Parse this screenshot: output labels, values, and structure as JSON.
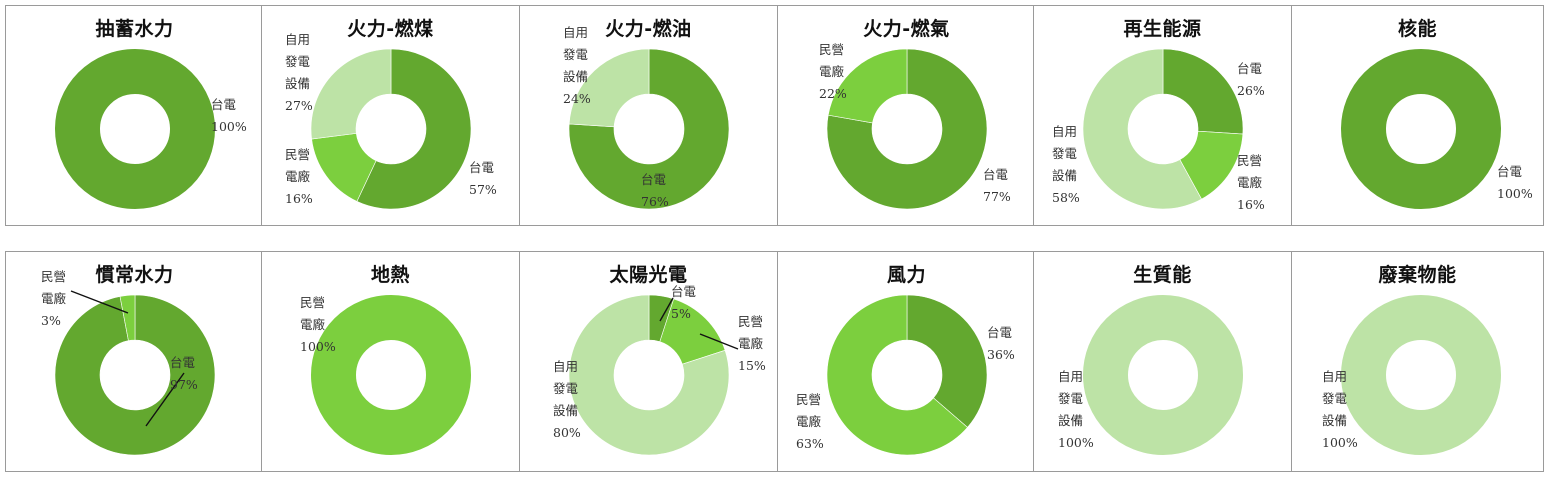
{
  "colors": {
    "taipower": "#63a82f",
    "private": "#7ccf3e",
    "self_use": "#bde3a6",
    "leader": "#111111"
  },
  "chart_data": [
    {
      "type": "pie",
      "title": "抽蓄水力",
      "categories": [
        "台電"
      ],
      "values": [
        100
      ],
      "slices": [
        {
          "label_lines": [
            "台電",
            "100%"
          ],
          "color_key": "taipower"
        }
      ]
    },
    {
      "type": "pie",
      "title": "火力-燃煤",
      "categories": [
        "台電",
        "民營電廠",
        "自用發電設備"
      ],
      "values": [
        57,
        16,
        27
      ],
      "slices": [
        {
          "label_lines": [
            "台電",
            "57%"
          ],
          "color_key": "taipower"
        },
        {
          "label_lines": [
            "民營",
            "電廠",
            "16%"
          ],
          "color_key": "private"
        },
        {
          "label_lines": [
            "自用",
            "發電",
            "設備",
            "27%"
          ],
          "color_key": "self_use"
        }
      ]
    },
    {
      "type": "pie",
      "title": "火力-燃油",
      "categories": [
        "台電",
        "自用發電設備"
      ],
      "values": [
        76,
        24
      ],
      "slices": [
        {
          "label_lines": [
            "台電",
            "76%"
          ],
          "color_key": "taipower"
        },
        {
          "label_lines": [
            "自用",
            "發電",
            "設備",
            "24%"
          ],
          "color_key": "self_use"
        }
      ]
    },
    {
      "type": "pie",
      "title": "火力-燃氣",
      "categories": [
        "台電",
        "民營電廠"
      ],
      "values": [
        77,
        22
      ],
      "slices": [
        {
          "label_lines": [
            "台電",
            "77%"
          ],
          "color_key": "taipower"
        },
        {
          "label_lines": [
            "民營",
            "電廠",
            "22%"
          ],
          "color_key": "private"
        }
      ]
    },
    {
      "type": "pie",
      "title": "再生能源",
      "categories": [
        "台電",
        "民營電廠",
        "自用發電設備"
      ],
      "values": [
        26,
        16,
        58
      ],
      "slices": [
        {
          "label_lines": [
            "台電",
            "26%"
          ],
          "color_key": "taipower"
        },
        {
          "label_lines": [
            "民營",
            "電廠",
            "16%"
          ],
          "color_key": "private"
        },
        {
          "label_lines": [
            "自用",
            "發電",
            "設備",
            "58%"
          ],
          "color_key": "self_use"
        }
      ]
    },
    {
      "type": "pie",
      "title": "核能",
      "categories": [
        "台電"
      ],
      "values": [
        100
      ],
      "slices": [
        {
          "label_lines": [
            "台電",
            "100%"
          ],
          "color_key": "taipower"
        }
      ]
    },
    {
      "type": "pie",
      "title": "慣常水力",
      "categories": [
        "台電",
        "民營電廠"
      ],
      "values": [
        97,
        3
      ],
      "slices": [
        {
          "label_lines": [
            "台電",
            "97%"
          ],
          "color_key": "taipower"
        },
        {
          "label_lines": [
            "民營",
            "電廠",
            "3%"
          ],
          "color_key": "private"
        }
      ]
    },
    {
      "type": "pie",
      "title": "地熱",
      "categories": [
        "民營電廠"
      ],
      "values": [
        100
      ],
      "slices": [
        {
          "label_lines": [
            "民營",
            "電廠",
            "100%"
          ],
          "color_key": "private"
        }
      ]
    },
    {
      "type": "pie",
      "title": "太陽光電",
      "categories": [
        "台電",
        "民營電廠",
        "自用發電設備"
      ],
      "values": [
        5,
        15,
        80
      ],
      "slices": [
        {
          "label_lines": [
            "台電",
            "5%"
          ],
          "color_key": "taipower"
        },
        {
          "label_lines": [
            "民營",
            "電廠",
            "15%"
          ],
          "color_key": "private"
        },
        {
          "label_lines": [
            "自用",
            "發電",
            "設備",
            "80%"
          ],
          "color_key": "self_use"
        }
      ]
    },
    {
      "type": "pie",
      "title": "風力",
      "categories": [
        "台電",
        "民營電廠"
      ],
      "values": [
        36,
        63
      ],
      "slices": [
        {
          "label_lines": [
            "台電",
            "36%"
          ],
          "color_key": "taipower"
        },
        {
          "label_lines": [
            "民營",
            "電廠",
            "63%"
          ],
          "color_key": "private"
        }
      ]
    },
    {
      "type": "pie",
      "title": "生質能",
      "categories": [
        "自用發電設備"
      ],
      "values": [
        100
      ],
      "slices": [
        {
          "label_lines": [
            "自用",
            "發電",
            "設備",
            "100%"
          ],
          "color_key": "self_use"
        }
      ]
    },
    {
      "type": "pie",
      "title": "廢棄物能",
      "categories": [
        "自用發電設備"
      ],
      "values": [
        100
      ],
      "slices": [
        {
          "label_lines": [
            "自用",
            "發電",
            "設備",
            "100%"
          ],
          "color_key": "self_use"
        }
      ]
    }
  ]
}
